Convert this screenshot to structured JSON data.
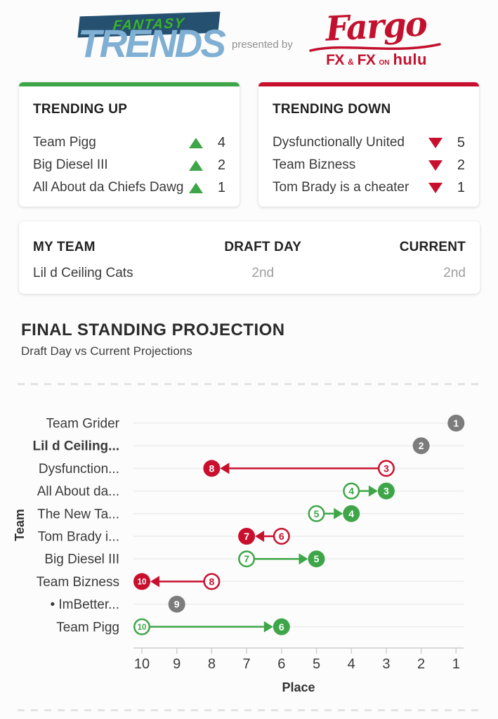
{
  "header": {
    "logo_line1": "FANTASY",
    "logo_line2": "TRENDS",
    "presented_by": "presented by",
    "sponsor": {
      "title": "Fargo",
      "fx1": "FX",
      "amp": "&",
      "fx2": "FX",
      "on": "ON",
      "hulu": "hulu"
    }
  },
  "colors": {
    "trend_up_green": "#3EA648",
    "trend_down_red": "#C8102E",
    "neutral_gray": "#7C7C7C",
    "banner_navy": "#255070",
    "logo_light_blue": "#7FB0D4",
    "logo_green": "#3CB329",
    "sponsor_red": "#C2112E"
  },
  "trending_up": {
    "title": "TRENDING UP",
    "items": [
      {
        "team": "Team Pigg",
        "change": 4
      },
      {
        "team": "Big Diesel III",
        "change": 2
      },
      {
        "team": "All About da Chiefs Dawg",
        "change": 1
      }
    ]
  },
  "trending_down": {
    "title": "TRENDING DOWN",
    "items": [
      {
        "team": "Dysfunctionally United",
        "change": 5
      },
      {
        "team": "Team Bizness",
        "change": 2
      },
      {
        "team": "Tom Brady is a cheater",
        "change": 1
      }
    ]
  },
  "my_team": {
    "headers": [
      "MY TEAM",
      "DRAFT DAY",
      "CURRENT"
    ],
    "team": "Lil d Ceiling Cats",
    "draft_day": "2nd",
    "current": "2nd"
  },
  "section": {
    "title": "FINAL STANDING PROJECTION",
    "subtitle": "Draft Day vs Current Projections"
  },
  "chart_data": {
    "type": "scatter",
    "title": "FINAL STANDING PROJECTION",
    "subtitle": "Draft Day vs Current Projections",
    "xlabel": "Place",
    "ylabel": "Team",
    "x_ticks": [
      10,
      9,
      8,
      7,
      6,
      5,
      4,
      3,
      2,
      1
    ],
    "x_axis_reversed": true,
    "grid": "horizontal",
    "legend": "none",
    "marker_colors": {
      "up": "#3EA648",
      "down": "#C8102E",
      "same": "#7C7C7C"
    },
    "rows": [
      {
        "label": "Team Grider",
        "bold": false,
        "draft": 1,
        "current": 1
      },
      {
        "label": "Lil d Ceiling...",
        "bold": true,
        "draft": 2,
        "current": 2
      },
      {
        "label": "Dysfunction...",
        "bold": false,
        "draft": 3,
        "current": 8
      },
      {
        "label": "All About da...",
        "bold": false,
        "draft": 4,
        "current": 3
      },
      {
        "label": "The New Ta...",
        "bold": false,
        "draft": 5,
        "current": 4
      },
      {
        "label": "Tom Brady i...",
        "bold": false,
        "draft": 6,
        "current": 7
      },
      {
        "label": "Big Diesel III",
        "bold": false,
        "draft": 7,
        "current": 5
      },
      {
        "label": "Team Bizness",
        "bold": false,
        "draft": 8,
        "current": 10
      },
      {
        "label": "• ImBetter...",
        "bold": false,
        "draft": 9,
        "current": 9
      },
      {
        "label": "Team Pigg",
        "bold": false,
        "draft": 10,
        "current": 6
      }
    ]
  }
}
